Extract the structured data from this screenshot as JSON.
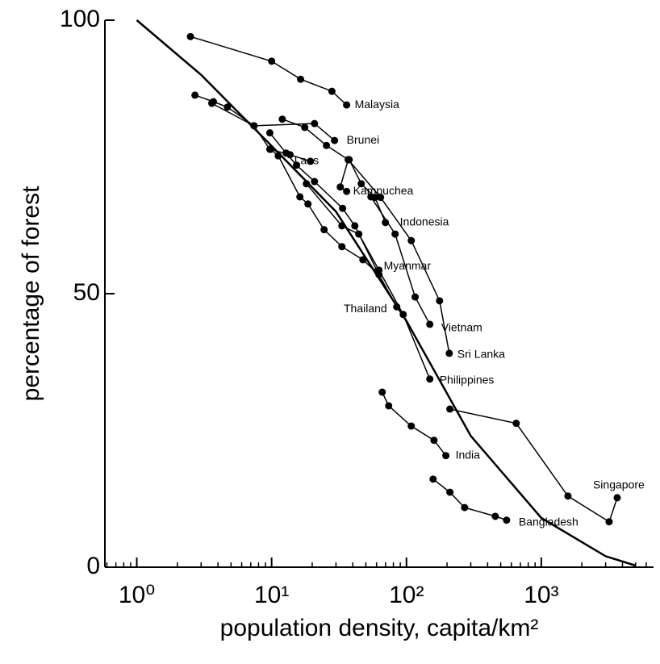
{
  "chart_data": {
    "type": "line",
    "xlabel": "population density, capita/km²",
    "ylabel": "percentage of forest",
    "xscale": "log",
    "xlim": [
      0.58,
      6800
    ],
    "ylim": [
      0,
      100
    ],
    "xticks": [
      {
        "value": 1,
        "label": "10⁰"
      },
      {
        "value": 10,
        "label": "10¹"
      },
      {
        "value": 100,
        "label": "10²"
      },
      {
        "value": 1000,
        "label": "10³"
      }
    ],
    "yticks": [
      0,
      50,
      100
    ],
    "color": "#000000",
    "curve": {
      "x": [
        1,
        3,
        10,
        30,
        100,
        300,
        1000,
        3000,
        5000
      ],
      "y": [
        100,
        90,
        77,
        65,
        45,
        24,
        9,
        2,
        0.3
      ]
    },
    "series": [
      {
        "name": "Malaysia",
        "x": [
          2.5,
          10,
          16.4,
          28,
          36
        ],
        "values": [
          97.0,
          92.5,
          89.2,
          87.0,
          84.5
        ]
      },
      {
        "name": "Brunei",
        "x": [
          2.7,
          3.7,
          4.7,
          7.4,
          20.8,
          29.3
        ],
        "values": [
          86.3,
          85.1,
          84.1,
          80.7,
          81.1,
          78.0
        ]
      },
      {
        "name": "Laos",
        "x": [
          3.6,
          7.4,
          9.7,
          13.7,
          19.4
        ],
        "values": [
          84.8,
          80.7,
          76.4,
          75.4,
          74.2
        ]
      },
      {
        "name": "Kampuchea",
        "x": [
          12.0,
          17.6,
          25.5,
          37,
          32.3,
          36
        ],
        "values": [
          81.9,
          80.4,
          77.1,
          74.5,
          69.5,
          68.7
        ]
      },
      {
        "name": "Indonesia",
        "x": [
          37.6,
          46.2,
          58.4,
          69.8
        ],
        "values": [
          74.5,
          70.1,
          67.6,
          63.0
        ]
      },
      {
        "name": "Myanmar",
        "x": [
          9.7,
          12.8,
          15.3,
          20.8,
          33.6,
          41.4,
          60.8
        ],
        "values": [
          79.4,
          75.7,
          73.5,
          70.5,
          65.6,
          62.4,
          54.1
        ]
      },
      {
        "name": "Thailand",
        "x": [
          9.8,
          11.2,
          16.2,
          18.6,
          24.5,
          33.2,
          47.5,
          62.5,
          84.7
        ],
        "values": [
          76.4,
          75.2,
          67.7,
          66.4,
          61.7,
          58.6,
          56.2,
          53.5,
          47.6
        ]
      },
      {
        "name": "Vietnam",
        "x": [
          54.5,
          82.4,
          116,
          149
        ],
        "values": [
          67.7,
          60.9,
          49.4,
          44.4
        ]
      },
      {
        "name": "Sri Lanka",
        "x": [
          37,
          64.3,
          108.6,
          176,
          207.7
        ],
        "values": [
          74.5,
          67.6,
          59.7,
          48.7,
          39.1
        ]
      },
      {
        "name": "Philippines",
        "x": [
          18.1,
          33.2,
          44.3,
          62.5,
          94.6,
          149
        ],
        "values": [
          70.1,
          62.4,
          60.9,
          54.3,
          46.2,
          34.4
        ]
      },
      {
        "name": "India",
        "x": [
          66.1,
          73.8,
          108.6,
          160,
          196
        ],
        "values": [
          32.0,
          29.5,
          25.8,
          23.2,
          20.4
        ]
      },
      {
        "name": "Bangladesh",
        "x": [
          157.6,
          210,
          270,
          456,
          553
        ],
        "values": [
          16.1,
          13.7,
          10.9,
          9.3,
          8.6
        ]
      },
      {
        "name": "Singapore",
        "x": [
          210,
          652,
          1577,
          3185,
          3656
        ],
        "values": [
          28.9,
          26.3,
          13.0,
          8.3,
          12.7
        ]
      }
    ]
  }
}
